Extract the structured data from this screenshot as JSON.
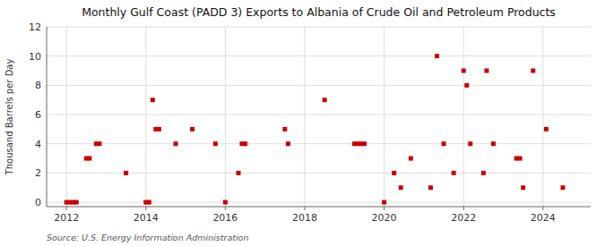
{
  "chart_data": {
    "type": "scatter",
    "title": "Monthly Gulf Coast (PADD 3) Exports to Albania of Crude Oil and Petroleum Products",
    "y_label": "Thousand Barrels per Day",
    "annotations": [
      "Source: U.S. Energy Information Administration"
    ],
    "color": "#cc0000",
    "marker": "square",
    "grid": true,
    "xlim": [
      2011.5,
      2025.2
    ],
    "ylim": [
      -0.3,
      12
    ],
    "xticks": [
      2012,
      2014,
      2016,
      2018,
      2020,
      2022,
      2024
    ],
    "yticks": [
      0,
      2,
      4,
      6,
      8,
      10,
      12
    ],
    "x": [
      2012.0,
      2012.08,
      2012.17,
      2012.25,
      2012.5,
      2012.58,
      2012.75,
      2012.83,
      2013.5,
      2014.0,
      2014.08,
      2014.17,
      2014.25,
      2014.33,
      2014.75,
      2015.17,
      2015.75,
      2016.0,
      2016.33,
      2016.42,
      2016.5,
      2017.5,
      2017.58,
      2018.5,
      2019.25,
      2019.33,
      2019.42,
      2019.5,
      2020.0,
      2020.25,
      2020.42,
      2020.67,
      2021.17,
      2021.33,
      2021.5,
      2021.75,
      2022.0,
      2022.08,
      2022.17,
      2022.5,
      2022.58,
      2022.75,
      2023.33,
      2023.42,
      2023.5,
      2023.75,
      2024.08,
      2024.5
    ],
    "values": [
      0,
      0,
      0,
      0,
      3,
      3,
      4,
      4,
      2,
      0,
      0,
      7,
      5,
      5,
      4,
      5,
      4,
      0,
      2,
      4,
      4,
      5,
      4,
      7,
      4,
      4,
      4,
      4,
      0,
      2,
      1,
      3,
      1,
      10,
      4,
      2,
      9,
      8,
      4,
      2,
      9,
      4,
      3,
      3,
      1,
      9,
      5,
      1
    ]
  }
}
